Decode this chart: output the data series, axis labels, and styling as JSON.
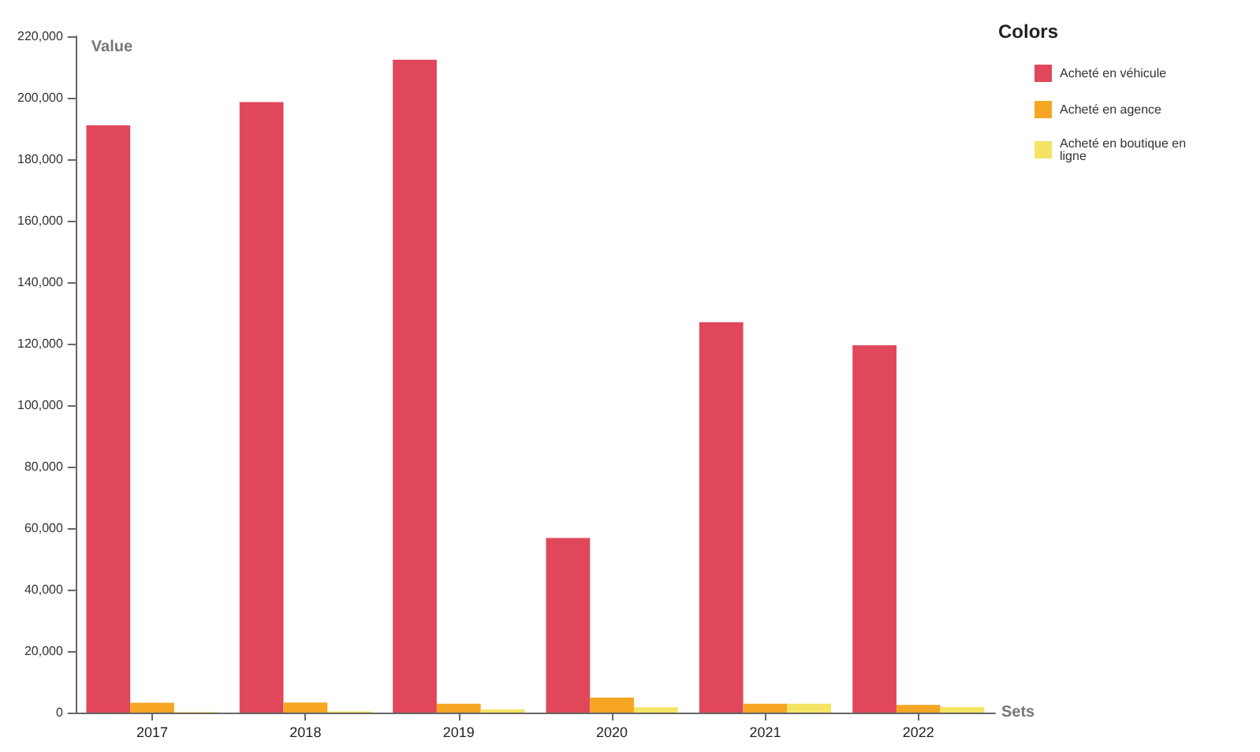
{
  "chart_data": {
    "type": "bar",
    "xlabel": "Sets",
    "ylabel": "Value",
    "legend_title": "Colors",
    "legend": "right",
    "grid": false,
    "categories": [
      "2017",
      "2018",
      "2019",
      "2020",
      "2021",
      "2022"
    ],
    "series": [
      {
        "name": "Acheté en véhicule",
        "color": "#e0475b",
        "values": [
          191000,
          198600,
          212400,
          56800,
          127000,
          119500
        ]
      },
      {
        "name": "Acheté en agence",
        "color": "#f5a623",
        "values": [
          3200,
          3300,
          2900,
          4900,
          2900,
          2500
        ]
      },
      {
        "name": "Acheté en boutique en ligne",
        "color": "#f5e463",
        "values": [
          200,
          400,
          1000,
          1700,
          2900,
          1800
        ]
      }
    ],
    "ylim": [
      0,
      220000
    ],
    "yticks": [
      {
        "value": 0,
        "label": "0"
      },
      {
        "value": 20000,
        "label": "20,000"
      },
      {
        "value": 40000,
        "label": "40,000"
      },
      {
        "value": 60000,
        "label": "60,000"
      },
      {
        "value": 80000,
        "label": "80,000"
      },
      {
        "value": 100000,
        "label": "100,000"
      },
      {
        "value": 120000,
        "label": "120,000"
      },
      {
        "value": 140000,
        "label": "140,000"
      },
      {
        "value": 160000,
        "label": "160,000"
      },
      {
        "value": 180000,
        "label": "180,000"
      },
      {
        "value": 200000,
        "label": "200,000"
      },
      {
        "value": 220000,
        "label": "220,000"
      }
    ]
  }
}
